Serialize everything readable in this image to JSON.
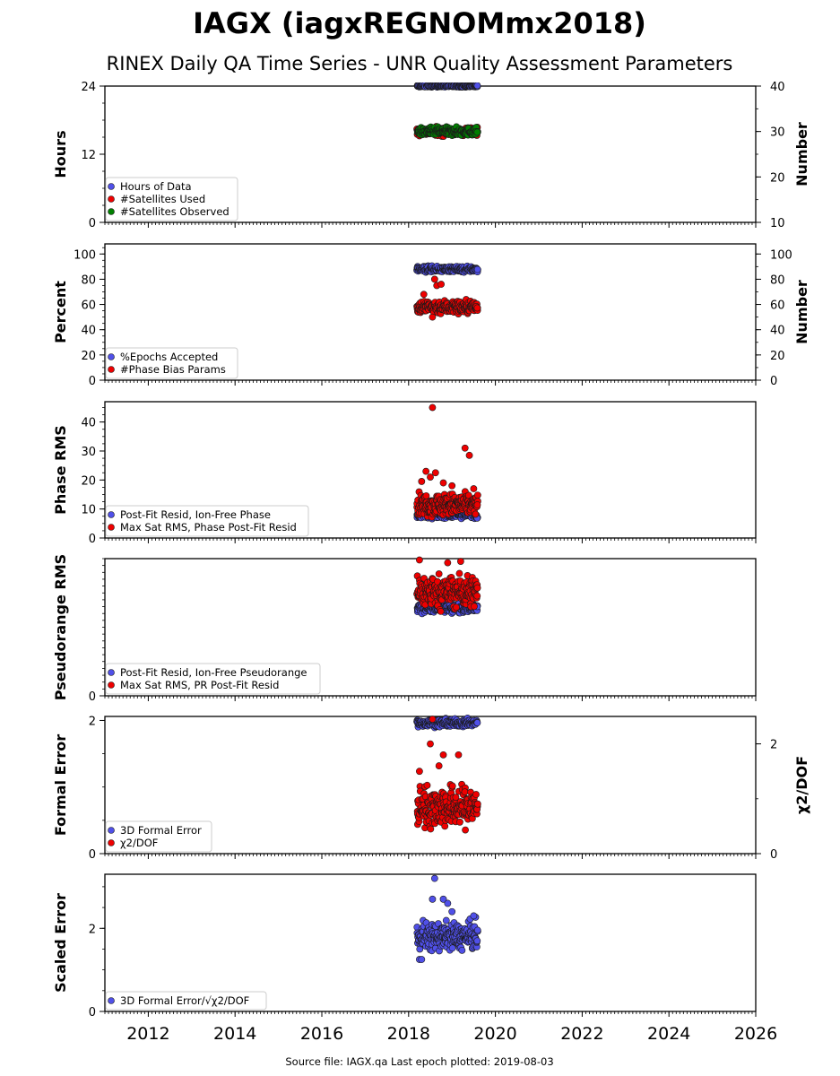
{
  "figure": {
    "title": "IAGX (iagxREGNOMmx2018)",
    "subtitle": "RINEX Daily QA Time Series - UNR Quality Assessment Parameters",
    "footer": "Source file: IAGX.qa Last epoch plotted: 2019-08-03",
    "x_ticks": [
      "2012",
      "2014",
      "2016",
      "2018",
      "2020",
      "2022",
      "2024",
      "2026"
    ]
  },
  "colors": {
    "blue": "#5050e8",
    "red": "#ee0000",
    "green": "#008000",
    "edge": "#1a1a1a"
  },
  "chart_data": [
    {
      "type": "scatter",
      "xlim": [
        2011.0,
        2026.0
      ],
      "ylabel": "Hours",
      "ylim": [
        0,
        24
      ],
      "yticks": [
        "0",
        "12",
        "24"
      ],
      "y2label": "Number",
      "y2lim": [
        10,
        40
      ],
      "y2ticks": [
        "10",
        "20",
        "30",
        "40"
      ],
      "grid": false,
      "legend_position": "lower-left",
      "series": [
        {
          "name": "Hours of Data",
          "color": "blue",
          "axis": "left",
          "pattern": "band",
          "y_center": 24.0,
          "y_spread": 0.15,
          "x_start": 2018.2,
          "x_end": 2019.59
        },
        {
          "name": "#Satellites Used",
          "color": "red",
          "axis": "right",
          "pattern": "band",
          "y_center": 30.0,
          "y_spread": 0.8,
          "x_start": 2018.2,
          "x_end": 2019.59
        },
        {
          "name": "#Satellites Observed",
          "color": "green",
          "axis": "right",
          "pattern": "band",
          "y_center": 30.0,
          "y_spread": 0.8,
          "x_start": 2018.2,
          "x_end": 2019.59
        }
      ]
    },
    {
      "type": "scatter",
      "xlim": [
        2011.0,
        2026.0
      ],
      "ylabel": "Percent",
      "ylim": [
        0,
        108
      ],
      "yticks": [
        "0",
        "20",
        "40",
        "60",
        "80",
        "100"
      ],
      "y2label": "Number",
      "y2lim": [
        0,
        108
      ],
      "y2ticks": [
        "0",
        "20",
        "40",
        "60",
        "80",
        "100"
      ],
      "grid": false,
      "legend_position": "lower-left",
      "series": [
        {
          "name": "%Epochs Accepted",
          "color": "blue",
          "axis": "left",
          "pattern": "band",
          "y_center": 88.0,
          "y_spread": 2.0,
          "x_start": 2018.2,
          "x_end": 2019.59
        },
        {
          "name": "#Phase Bias Params",
          "color": "red",
          "axis": "right",
          "pattern": "band",
          "y_center": 58.0,
          "y_spread": 5.0,
          "x_start": 2018.2,
          "x_end": 2019.59,
          "points": [
            [
              2018.35,
              68
            ],
            [
              2018.6,
              80
            ],
            [
              2018.65,
              75
            ],
            [
              2018.75,
              76
            ],
            [
              2018.55,
              50
            ]
          ]
        }
      ]
    },
    {
      "type": "scatter",
      "xlim": [
        2011.0,
        2026.0
      ],
      "ylabel": "Phase RMS",
      "ylim": [
        0,
        47
      ],
      "yticks": [
        "0",
        "10",
        "20",
        "30",
        "40"
      ],
      "grid": false,
      "legend_position": "lower-left",
      "series": [
        {
          "name": "Post-Fit Resid, Ion-Free Phase",
          "color": "blue",
          "axis": "left",
          "pattern": "band",
          "y_center": 8.0,
          "y_spread": 1.0,
          "x_start": 2018.2,
          "x_end": 2019.59
        },
        {
          "name": "Max Sat RMS, Phase Post-Fit Resid",
          "color": "red",
          "axis": "left",
          "pattern": "band",
          "y_center": 11.5,
          "y_spread": 3.5,
          "x_start": 2018.2,
          "x_end": 2019.59,
          "points": [
            [
              2018.55,
              45
            ],
            [
              2019.3,
              31
            ],
            [
              2019.4,
              28.5
            ],
            [
              2018.4,
              23
            ],
            [
              2018.5,
              21
            ],
            [
              2018.62,
              22.5
            ],
            [
              2018.8,
              19
            ],
            [
              2019.0,
              18
            ],
            [
              2018.3,
              19.5
            ],
            [
              2019.5,
              17
            ]
          ]
        }
      ]
    },
    {
      "type": "scatter",
      "xlim": [
        2011.0,
        2026.0
      ],
      "ylabel": "Pseudorange RMS",
      "ylim": [
        0,
        10
      ],
      "yticks": [
        "0"
      ],
      "grid": false,
      "legend_position": "lower-left",
      "series": [
        {
          "name": "Post-Fit Resid, Ion-Free Pseudorange",
          "color": "blue",
          "axis": "left",
          "pattern": "band",
          "y_center": 6.4,
          "y_spread": 0.3,
          "x_start": 2018.2,
          "x_end": 2019.59
        },
        {
          "name": "Max Sat RMS, PR Post-Fit Resid",
          "color": "red",
          "axis": "left",
          "pattern": "band",
          "y_center": 7.6,
          "y_spread": 1.1,
          "x_start": 2018.2,
          "x_end": 2019.59,
          "points": [
            [
              2018.25,
              9.9
            ],
            [
              2019.2,
              9.8
            ],
            [
              2018.9,
              9.7
            ]
          ]
        }
      ]
    },
    {
      "type": "scatter",
      "xlim": [
        2011.0,
        2026.0
      ],
      "ylabel": "Formal Error",
      "ylim": [
        0,
        2.06
      ],
      "yticks": [
        "0",
        "2"
      ],
      "y2label": "χ2/DOF",
      "y2lim": [
        0,
        2.5
      ],
      "y2ticks": [
        "0",
        "2"
      ],
      "grid": false,
      "legend_position": "lower-left",
      "series": [
        {
          "name": "3D Formal Error",
          "color": "blue",
          "axis": "left",
          "pattern": "band",
          "y_center": 1.96,
          "y_spread": 0.05,
          "x_start": 2018.2,
          "x_end": 2019.59
        },
        {
          "name": "χ2/DOF",
          "color": "red",
          "axis": "right",
          "pattern": "band",
          "y_center": 0.85,
          "y_spread": 0.35,
          "x_start": 2018.2,
          "x_end": 2019.59,
          "points": [
            [
              2018.55,
              2.45
            ],
            [
              2018.5,
              2.0
            ],
            [
              2018.8,
              1.8
            ],
            [
              2019.15,
              1.8
            ],
            [
              2018.25,
              1.5
            ],
            [
              2018.7,
              1.6
            ]
          ]
        }
      ]
    },
    {
      "type": "scatter",
      "xlim": [
        2011.0,
        2026.0
      ],
      "ylabel": "Scaled Error",
      "ylim": [
        0,
        3.3
      ],
      "yticks": [
        "0",
        "2"
      ],
      "grid": false,
      "legend_position": "lower-left",
      "series": [
        {
          "name": "3D Formal Error/√χ2/DOF",
          "color": "blue",
          "axis": "left",
          "pattern": "band",
          "y_center": 1.8,
          "y_spread": 0.3,
          "x_start": 2018.2,
          "x_end": 2019.59,
          "points": [
            [
              2018.6,
              3.2
            ],
            [
              2018.55,
              2.7
            ],
            [
              2018.8,
              2.7
            ],
            [
              2018.9,
              2.6
            ],
            [
              2019.0,
              2.4
            ],
            [
              2018.25,
              1.25
            ],
            [
              2018.3,
              1.25
            ],
            [
              2019.5,
              2.3
            ]
          ]
        }
      ]
    }
  ]
}
